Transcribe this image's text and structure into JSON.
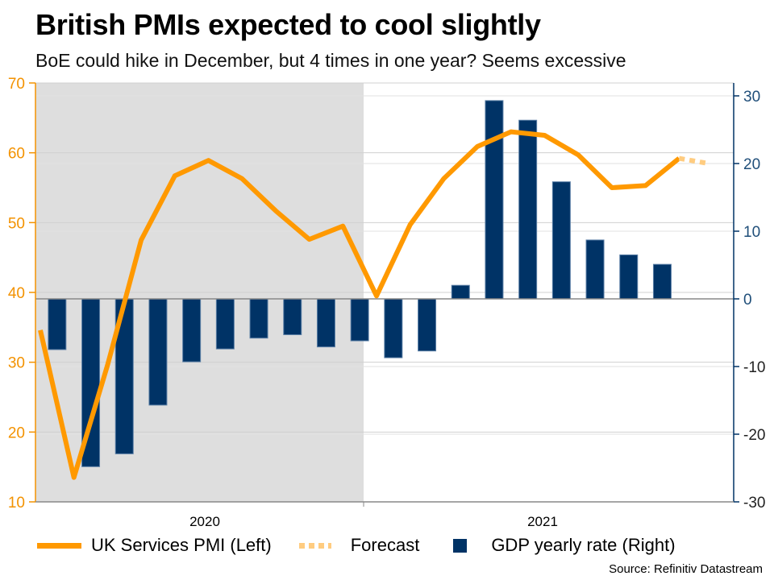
{
  "header": {
    "title": "British PMIs expected to cool slightly",
    "subtitle": "BoE could hike in December, but 4 times in one year? Seems excessive"
  },
  "footer": {
    "source": "Source: Refinitiv Datastream"
  },
  "colors": {
    "pmi_line": "#FF9900",
    "forecast_line": "#FFCC80",
    "gdp_bar": "#003366",
    "shade": "#DEDEDE",
    "left_axis": "#F39200",
    "right_axis": "#1F4E79"
  },
  "chart_data": {
    "type": "bar+line",
    "title": "British PMIs expected to cool slightly",
    "subtitle": "BoE could hike in December, but 4 times in one year? Seems excessive",
    "x_tick_labels": [
      "2020",
      "2021"
    ],
    "shaded_region": "2020",
    "left_axis": {
      "label": "UK Services PMI",
      "ylim": [
        10,
        70
      ],
      "ticks": [
        10,
        20,
        30,
        40,
        50,
        60,
        70
      ]
    },
    "right_axis": {
      "label": "GDP yearly rate",
      "ylim": [
        -30,
        30
      ],
      "ticks": [
        -30,
        -20,
        -10,
        0,
        10,
        20,
        30
      ]
    },
    "grid": true,
    "legend_position": "bottom",
    "series": [
      {
        "name": "UK Services PMI (Left)",
        "type": "line",
        "axis": "left",
        "values": [
          34.6,
          13.5,
          29.6,
          47.5,
          56.7,
          58.9,
          56.3,
          51.7,
          47.6,
          49.5,
          39.5,
          49.7,
          56.3,
          60.9,
          63.0,
          62.5,
          59.7,
          55.0,
          55.3,
          59.2
        ]
      },
      {
        "name": "Forecast",
        "type": "line-dotted",
        "axis": "left",
        "values": [
          59.2,
          58.5
        ]
      },
      {
        "name": "GDP yearly rate (Right)",
        "type": "bar",
        "axis": "right",
        "values": [
          -7.5,
          -24.8,
          -22.9,
          -15.7,
          -9.3,
          -7.4,
          -5.8,
          -5.3,
          -7.1,
          -6.2,
          -8.7,
          -7.7,
          2.0,
          29.3,
          26.4,
          17.3,
          8.7,
          6.5,
          5.1
        ]
      }
    ],
    "legend": [
      "UK Services PMI (Left)",
      "Forecast",
      "GDP yearly rate (Right)"
    ]
  }
}
